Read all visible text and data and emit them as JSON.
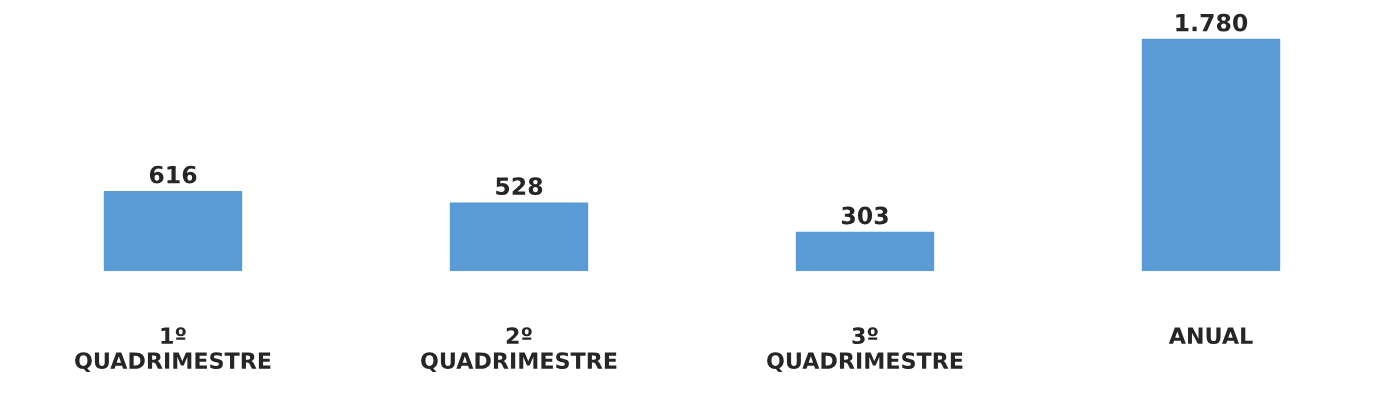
{
  "chart_data": {
    "type": "bar",
    "categories": [
      "1º\nQUADRIMESTRE",
      "2º\nQUADRIMESTRE",
      "3º\nQUADRIMESTRE",
      "ANUAL"
    ],
    "values": [
      616,
      528,
      303,
      1780
    ],
    "value_labels": [
      "616",
      "528",
      "303",
      "1.780"
    ],
    "color": "#5b9bd5",
    "grid": false,
    "tick_labels": "x"
  }
}
